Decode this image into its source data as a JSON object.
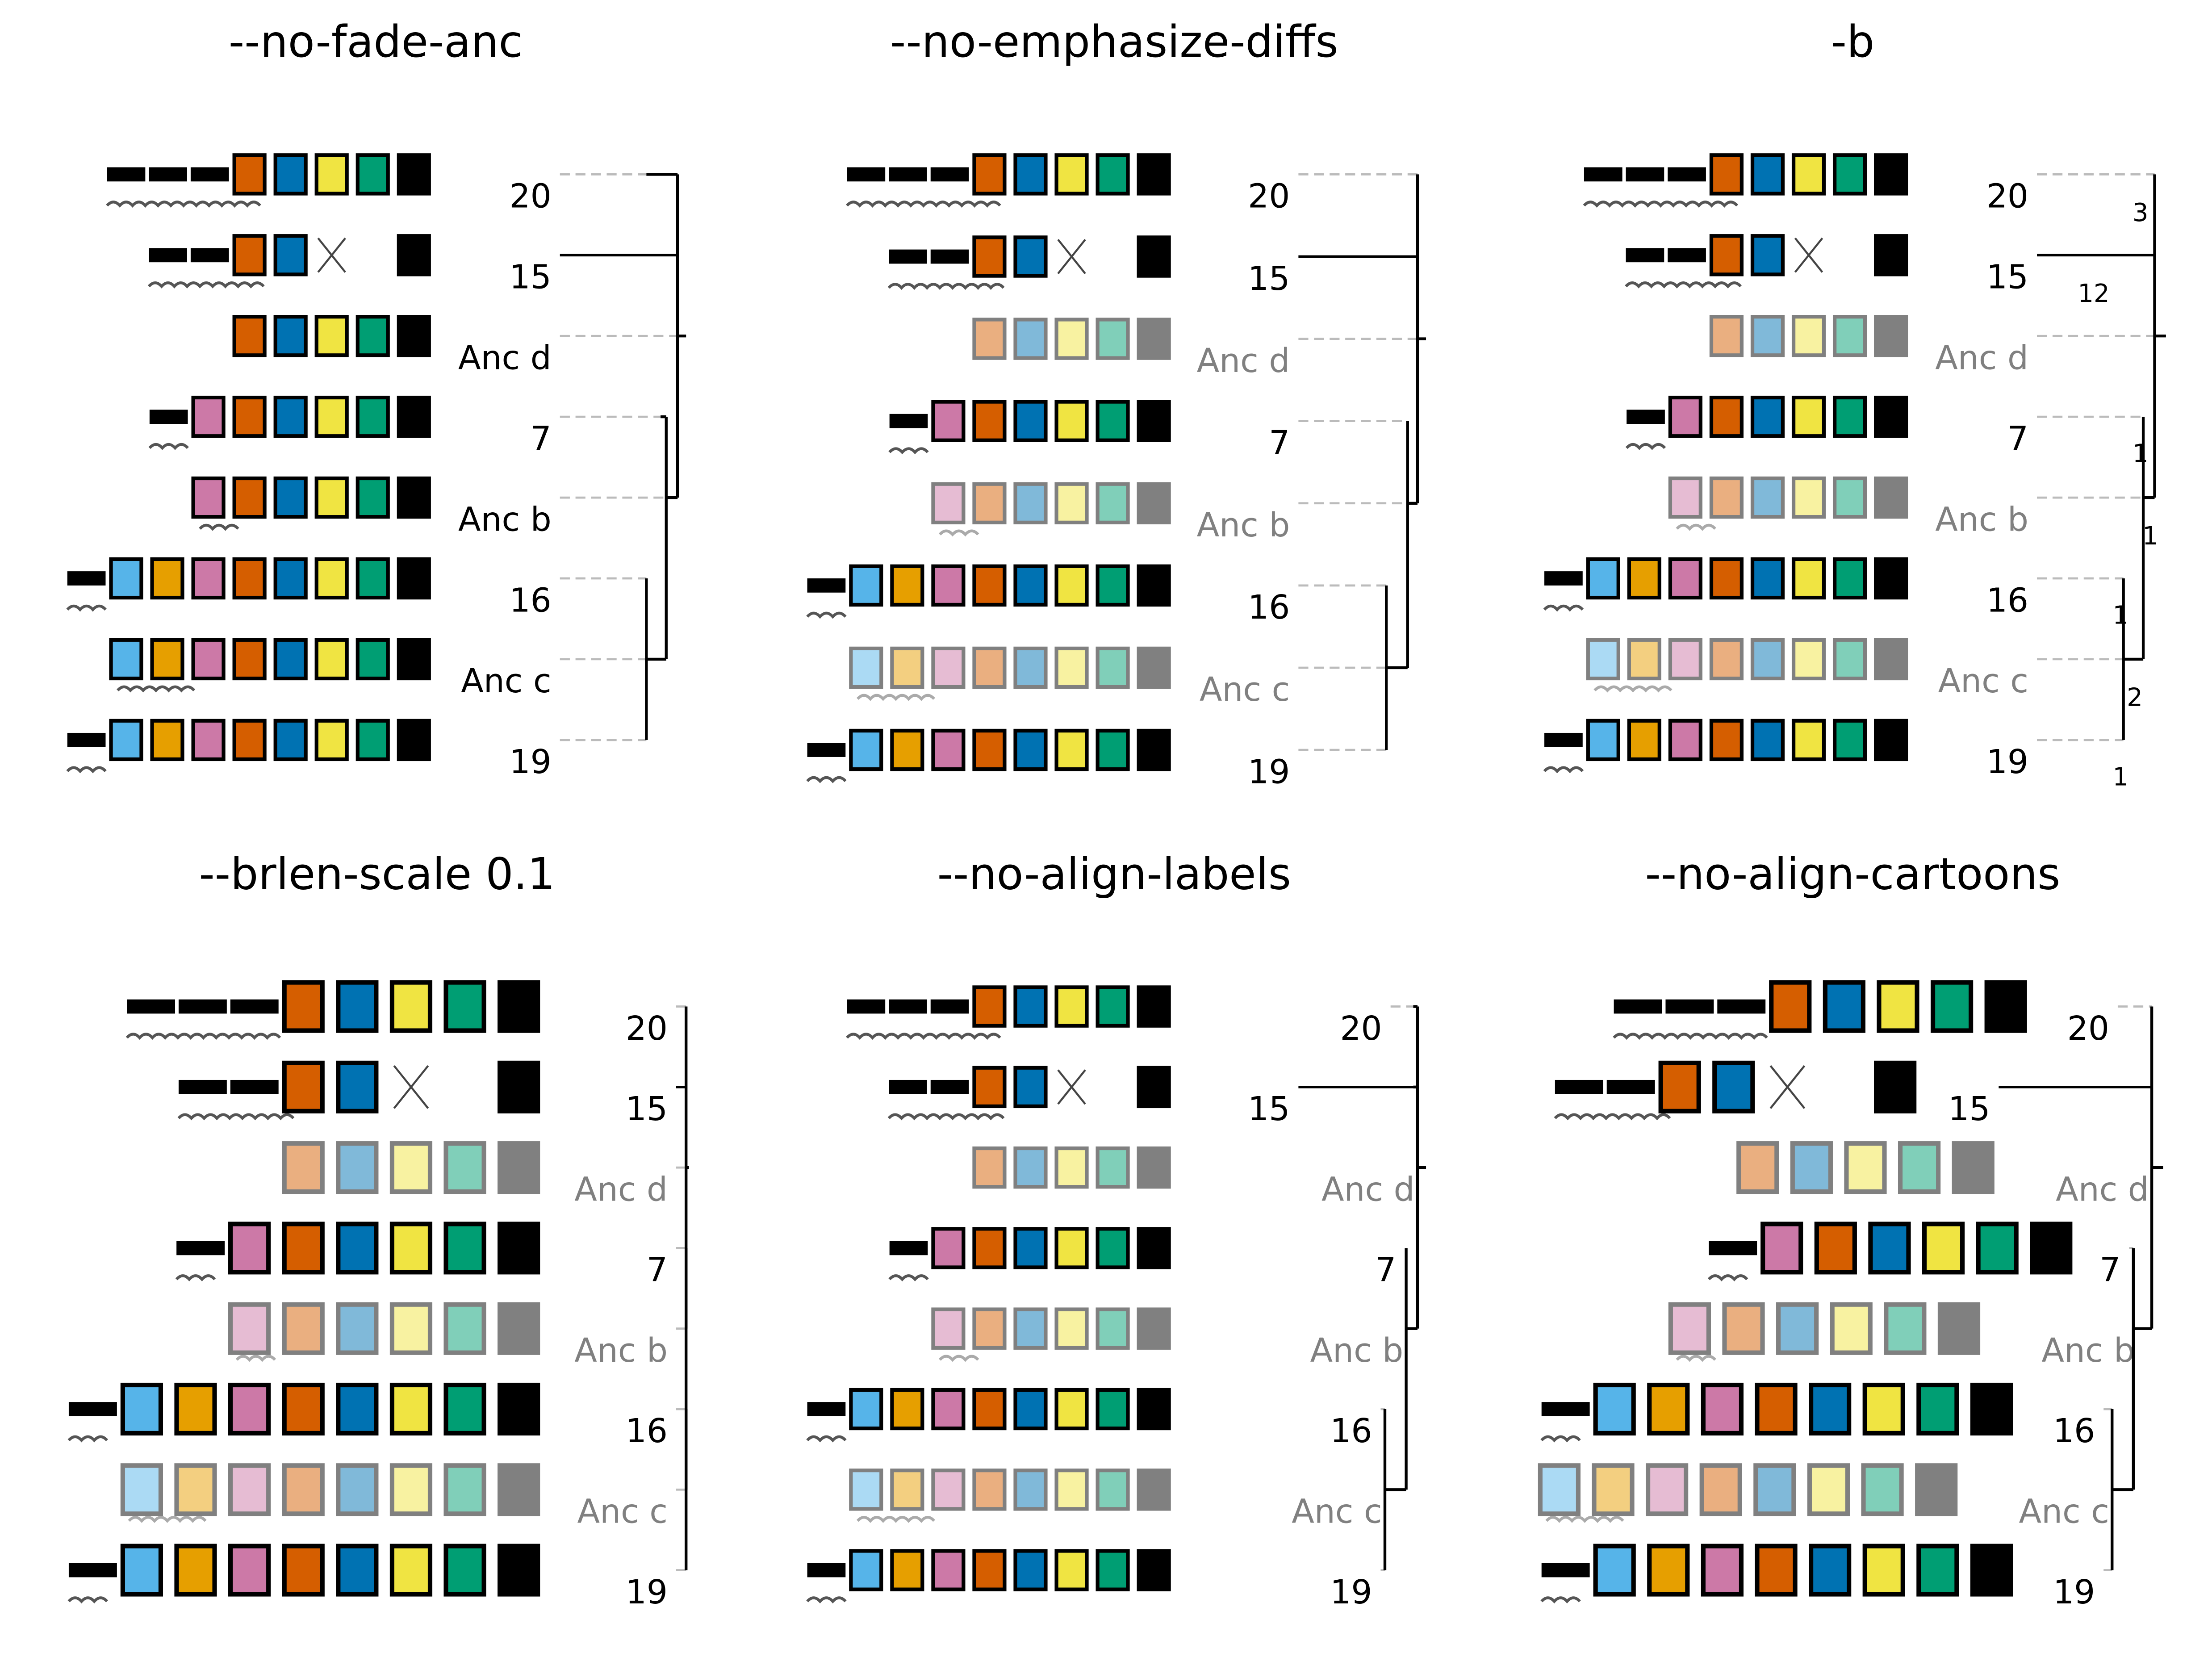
{
  "colors": {
    "orange": "#D55E00",
    "blue": "#0072B2",
    "yellow": "#F0E442",
    "green": "#009E73",
    "skyblue": "#56B4E9",
    "amber": "#E69F00",
    "pink": "#CC79A7",
    "black": "#000000",
    "faded_border": "#808080",
    "faded_text": "#808080",
    "guide": "#BBBBBB"
  },
  "gene_palette": [
    "skyblue",
    "amber",
    "pink",
    "orange",
    "blue",
    "yellow",
    "green",
    "black"
  ],
  "rows": [
    {
      "label": "20",
      "ancestral": false,
      "genes": [
        "orange",
        "blue",
        "yellow",
        "green",
        "black"
      ],
      "deletions": 3,
      "lost": [],
      "squiggle": 4
    },
    {
      "label": "15",
      "ancestral": false,
      "genes": [
        "orange",
        "blue",
        "yellow",
        "green",
        "black"
      ],
      "deletions": 2,
      "lost": [
        "yellow",
        "green"
      ],
      "squiggle": 3
    },
    {
      "label": "Anc d",
      "ancestral": true,
      "genes": [
        "orange",
        "blue",
        "yellow",
        "green",
        "black"
      ],
      "deletions": 0,
      "lost": [],
      "squiggle": 0
    },
    {
      "label": "7",
      "ancestral": false,
      "genes": [
        "pink",
        "orange",
        "blue",
        "yellow",
        "green",
        "black"
      ],
      "deletions": 1,
      "lost": [],
      "squiggle": 1
    },
    {
      "label": "Anc b",
      "ancestral": true,
      "genes": [
        "pink",
        "orange",
        "blue",
        "yellow",
        "green",
        "black"
      ],
      "deletions": 0,
      "lost": [],
      "squiggle": 1
    },
    {
      "label": "16",
      "ancestral": false,
      "genes": [
        "skyblue",
        "amber",
        "pink",
        "orange",
        "blue",
        "yellow",
        "green",
        "black"
      ],
      "deletions": 1,
      "lost": [],
      "squiggle": 1
    },
    {
      "label": "Anc c",
      "ancestral": true,
      "genes": [
        "skyblue",
        "amber",
        "pink",
        "orange",
        "blue",
        "yellow",
        "green",
        "black"
      ],
      "deletions": 0,
      "lost": [],
      "squiggle": 2
    },
    {
      "label": "19",
      "ancestral": false,
      "genes": [
        "skyblue",
        "amber",
        "pink",
        "orange",
        "blue",
        "yellow",
        "green",
        "black"
      ],
      "deletions": 1,
      "lost": [],
      "squiggle": 1
    }
  ],
  "panels": [
    {
      "title": "--no-fade-anc",
      "fade_ancestors": false,
      "branch_labels": []
    },
    {
      "title": "--no-emphasize-diffs",
      "fade_ancestors": true,
      "branch_labels": []
    },
    {
      "title": "-b",
      "fade_ancestors": true,
      "branch_labels": [
        "3",
        "12",
        "1",
        "1",
        "1",
        "2",
        "1"
      ]
    },
    {
      "title": "--brlen-scale 0.1",
      "fade_ancestors": true,
      "branch_labels": []
    },
    {
      "title": "--no-align-labels",
      "fade_ancestors": true,
      "branch_labels": []
    },
    {
      "title": "--no-align-cartoons",
      "fade_ancestors": true,
      "branch_labels": []
    }
  ]
}
